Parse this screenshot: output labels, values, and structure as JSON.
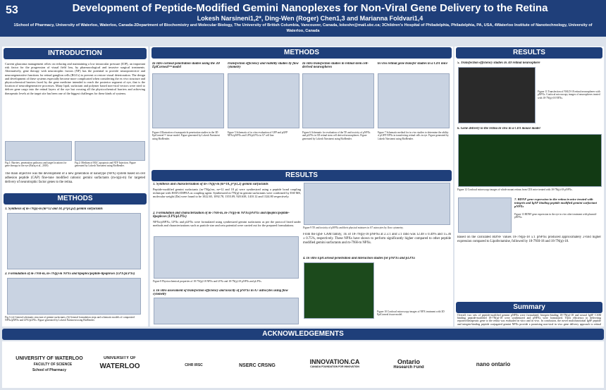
{
  "header": {
    "number": "53",
    "title": "Development of Peptide-Modified Gemini Nanoplexes for Non-Viral Gene Delivery to the Retina",
    "authors": "Lokesh Narsineni1,2*, Ding-Wen (Roger) Chen1,3 and Marianna Foldvari1,4",
    "affiliations": "1School of Pharmacy, University of Waterloo, Waterloo, Canada-2Department of Biochemistry and Molecular Biology, The University of British Columbia, Vancouver, Canada, lokeshn@mail.ubc.ca; 3Children's Hospital of Philadelphia, Philadelphia, PA, USA, 4Waterloo Institute of Nanotechnology, University of Waterloo, Canada"
  },
  "introduction": {
    "title": "INTRODUCTION",
    "body": "Current glaucoma management relies on reducing and maintaining a low intraocular pressure (IOP), an important risk factor for the progression of visual field loss, by pharmacological and invasive surgical treatments. Alternatively, gene therapy with neurotrophic factors (NF) has the potential to provide neuroprotective and neuroregenerative functions for retinal ganglion cells (RGCs) to prevent or restore visual deterioration. The design and development of these systems especially become more complicated when considering the ex vivo structure and physicochemical barriers faced by the gene medicine intended to reach the posterior segment of eye, that is the location of neurodegenerative processes. Many lipid, surfactant and polymer based non-viral vectors were tried to deliver gene cargo into the retinal layers of the eye but crossing all the physicochemical barriers and achieving therapeutic levels at the target site has been one of the biggest challenges for these kinds of systems.",
    "figure_captions": [
      "Fig.1: Barriers, penetration pathways and target locations for gene therapy in the eye (Rafiq et al., 2018)",
      "Fig.2: Medium of RGC apoptosis and NTF Injection. Figure generated by Lokesh Narsineni using BioRender."
    ],
    "objective": "The main objective was the development of a new generation of nanotype (NPX) system based on cell adhesion peptide (CAP) fine-tune modified cationic gemini surfactants (m-n(p)-m) for targeted delivery of neurotrophic factor genes to the retina."
  },
  "methods_left": {
    "title": "METHODS",
    "headings": [
      "1. Synthesis of m-7N(p)-m (m=12 and 18, p=p1,p2) gemini surfactants",
      "2. Formulation of m-7NH-m, m-7N(p)-m NPXs and lipoplex/peptide-lipoplexes (LPX/pLPXs)"
    ],
    "caption": "Fig.3: (a) General schematic structure of gemini surfactants; (b) General formulation steps and schematic models of composited NPXs/pNPXs and LPX/pLPXs. Figure generated by Lokesh Narsineni using BioRender."
  },
  "methods_mid": {
    "title": "METHODS",
    "panels": [
      {
        "heading": "In vitro corneal penetration studies using the 3D EpiCorneal™ model",
        "caption": "Figure 4 Illustration of nanoparticle penetration studies in the 3D EpiCorneal™ tissue model. Figure generated by Lokesh Narsineni using BioRender."
      },
      {
        "heading": "Transfection efficiency and viability studies by flow cytometry",
        "caption": "Figure 5 Schematic of in vitro evaluation of GFP and pGFP NPXs/pNPXs and LPX/pLPXs in A7 cell line."
      },
      {
        "heading": "In vitro transfection studies in retinal stem cell-derived neurospheres",
        "caption": "Figure 6 Schematic for evaluation of the TE and toxicity of pNPXs and pLPXs in 3D retinal stem cell derived neurospheres. Figure generated by Lokesh Narsineni using BioRender."
      },
      {
        "heading": "In vivo retinal gene transfer studies in a CD1 mice",
        "caption": "Figure 7 Schematic method for in vivo studies to determine the ability of pGFP-NPXs in transfecting retinal cells in eye. Figure generated by Lokesh Narsineni using BioRender."
      }
    ]
  },
  "results_mid": {
    "title": "RESULTS",
    "headings": [
      "1. Synthesis and characterization of m-7N(p)-m (m=18, p=p1,2) gemini surfactants",
      "2. Formulation and characterization of m-7NH-m, m-7N(p)-m NPXs/pNPXs and lipoplex/peptide-lipoplexes (LPX/pLPXs)",
      "3. In vitro assessment of transfection efficiency and toxicity of pNPXs in A7 astrocytes using flow cytometry",
      "4. In vitro EpiCorneal penetration and interaction studies for pNPXs and pLPXs"
    ],
    "text1": "Peptide-modified gemini surfactants (m-7N(p)-m, m=12 and 18 p) were synthesized using a peptide bond coupling technique with HATU/DIPEA as coupling agent. Synthesized m-7N(p)-m gemini surfactants were confirmed by ESI-MS, molecular weight (Da) were found to be 1022.65, 1092.78, 1355.09, 920.638, 1410.12 and 1324.80 respectively.",
    "text2": "NPXs/pNPXs, LPXs and pLPXs were formulated using synthesized gemini surfactants as per the protocol listed under methods and characterizations such as particle size and zeta potential were carried out for the prepared formulations.",
    "text3": "From the IgSF CAM family, TE of 18-7N(p)-18 pNPXs at 2.5:1 and 5:1 ratio was 12.48 ± 0.49% and 15.36 ± 0.75%, respectively. These NPXs have shown to perform significantly higher compared to other peptide modified gemini surfactants and m-7NH-m NPXs.",
    "caption8": "Figure 8 Physicochemical properties of 18-7N(p)-18 NPXs and LPXs and 18-7N(p)-18 pNPXs and pLPXs.",
    "caption9": "Figure 9 TE and toxicity of pNPXs and their physical mixtures in A7 astrocytes by flow cytometry.",
    "caption10": "Figure 10 Confocal microscopy images of NPX treatment with 3D EpiCorneal tissue model."
  },
  "results_right": {
    "title": "RESULTS",
    "headings": [
      "5. Transfection efficiency studies in 3D retinal neurosphere",
      "6. Gene delivery to the retina in vivo in a CD1 mouse model",
      "7. BDNF gene expression in the retina in mice treated with integrin and IgSF binding peptide modified gemini surfactant pNPXs"
    ],
    "caption11": "Figure 11 Transfection of NSLD-18 retinal neurospheres with pNPXs. Confocal microscopy images of neurospheres treated with 18-7N(p)-18 NPXs.",
    "caption12": "Figure 12 Confocal microscopy images of whole mount retinas from CD1 mice treated with 18-7N(p)-18 pNPXs.",
    "caption13": "Figure 13 BDNF gene expression in the eye in vivo after treatment with plasmid-pNPXs.",
    "text": "Based on the calculated BDNF values 18-7N(p)-18 5:1 pNPXs produced approximately 2-fold higher expression compared to Lipofectamine, followed by 18-7NH-18 and 18-7N(p)-18."
  },
  "summary": {
    "title": "Summary",
    "body": "Overall, two sets of peptide-modified gemini pNPXs were formulated. Integrin-binding 18-7N(p)-18 and neural IgSF CAM binding peptide-modified 18-7N(p)-18 were synthesized and pNPXs were formulated. Their efficiency in delivering reporter/therapeutic gene to the retina was evaluated in vitro and in vivo. In conclusion, the novel multifunctional IgSF peptide and integrin-binding peptide conjugated gemini NPXs provide a promising non-viral in vivo gene delivery approach to retinal cells."
  },
  "acknowledgements": {
    "title": "ACKNOWLEDGEMENTS",
    "logos": [
      "UNIVERSITY OF WATERLOO",
      "FACULTY OF SCIENCE",
      "School of Pharmacy",
      "UNIVERSITY OF",
      "WATERLOO",
      "CIHR IRSC",
      "NSERC CRSNG",
      "INNOVATION.CA",
      "CANADA FOUNDATION FOR INNOVATION",
      "Ontario",
      "Research Fund",
      "nano ontario"
    ]
  }
}
